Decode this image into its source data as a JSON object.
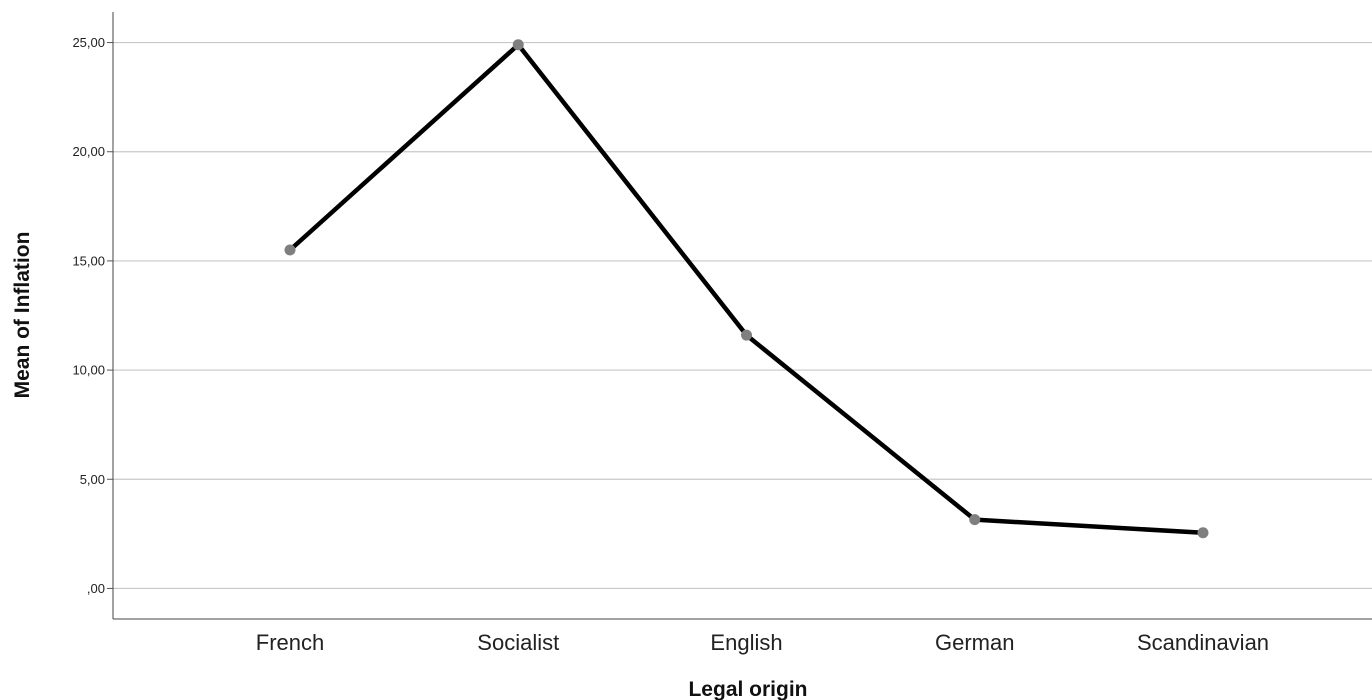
{
  "chart_data": {
    "type": "line",
    "title": "",
    "xlabel": "Legal origin",
    "ylabel": "Mean of Inflation",
    "categories": [
      "French",
      "Socialist",
      "English",
      "German",
      "Scandinavian"
    ],
    "series": [
      {
        "values": [
          15.5,
          24.9,
          11.6,
          3.15,
          2.55
        ]
      }
    ],
    "ylim": [
      -1.4,
      26.4
    ],
    "yticks": [
      0,
      5,
      10,
      15,
      20,
      25
    ],
    "ytick_labels": [
      ",00",
      "5,00",
      "10,00",
      "15,00",
      "20,00",
      "25,00"
    ],
    "grid": true,
    "line_color": "#000000",
    "marker_color": "#7f7f7f",
    "grid_color": "#c8c8c8"
  }
}
